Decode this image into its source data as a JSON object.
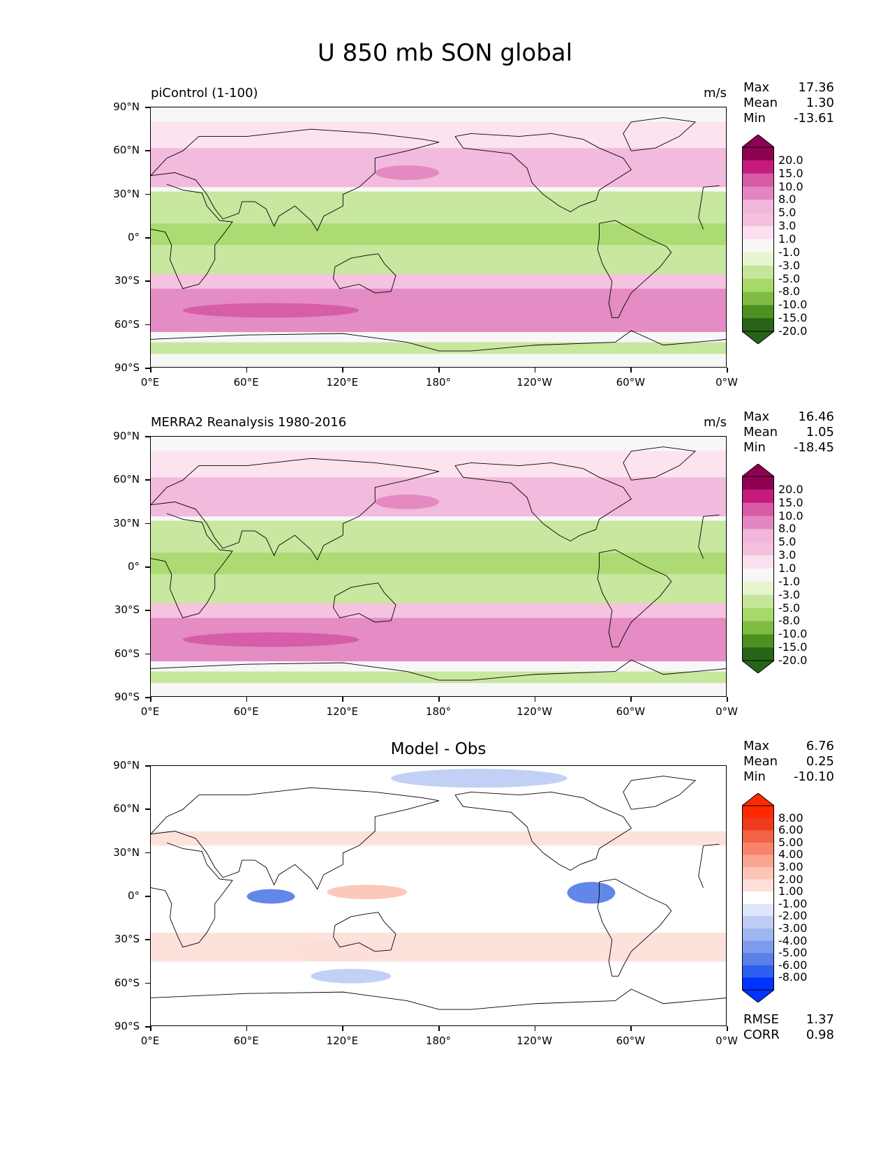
{
  "title": "U 850 mb SON global",
  "colors": {
    "seq": [
      "#276419",
      "#4d9221",
      "#7fbc41",
      "#a6d96a",
      "#c5e69a",
      "#e6f5d0",
      "#f7f7f7",
      "#fde0ef",
      "#f4bfdd",
      "#f1b6da",
      "#e386c0",
      "#d55ba5",
      "#c51b7d",
      "#8e0152"
    ],
    "diff": [
      "#0033ff",
      "#2f5ff0",
      "#5b80e8",
      "#7d9bec",
      "#9fb5f0",
      "#bfcdf5",
      "#dee6fb",
      "#ffffff",
      "#fde0da",
      "#fcc5b7",
      "#f9a48f",
      "#f6836a",
      "#f26244",
      "#ef3a1e",
      "#ff2a00"
    ]
  },
  "axes": {
    "lat_labels": [
      "90°N",
      "60°N",
      "30°N",
      "0°",
      "30°S",
      "60°S",
      "90°S"
    ],
    "lon_labels": [
      "0°E",
      "60°E",
      "120°E",
      "180°",
      "120°W",
      "60°W",
      "0°W"
    ]
  },
  "panels": [
    {
      "title": "piControl (1-100)",
      "units": "m/s",
      "stats": {
        "max_label": "Max",
        "max": "17.36",
        "mean_label": "Mean",
        "mean": "1.30",
        "min_label": "Min",
        "min": "-13.61"
      },
      "colorbar_labels": [
        "20.0",
        "15.0",
        "10.0",
        "8.0",
        "5.0",
        "3.0",
        "1.0",
        "-1.0",
        "-3.0",
        "-5.0",
        "-8.0",
        "-10.0",
        "-15.0",
        "-20.0"
      ]
    },
    {
      "title": "MERRA2 Reanalysis 1980-2016",
      "units": "m/s",
      "stats": {
        "max_label": "Max",
        "max": "16.46",
        "mean_label": "Mean",
        "mean": "1.05",
        "min_label": "Min",
        "min": "-18.45"
      },
      "colorbar_labels": [
        "20.0",
        "15.0",
        "10.0",
        "8.0",
        "5.0",
        "3.0",
        "1.0",
        "-1.0",
        "-3.0",
        "-5.0",
        "-8.0",
        "-10.0",
        "-15.0",
        "-20.0"
      ]
    },
    {
      "title": "Model - Obs",
      "stats": {
        "max_label": "Max",
        "max": "6.76",
        "mean_label": "Mean",
        "mean": "0.25",
        "min_label": "Min",
        "min": "-10.10"
      },
      "colorbar_labels": [
        "8.00",
        "6.00",
        "5.00",
        "4.00",
        "3.00",
        "2.00",
        "1.00",
        "-1.00",
        "-2.00",
        "-3.00",
        "-4.00",
        "-5.00",
        "-6.00",
        "-8.00"
      ],
      "rmse_label": "RMSE",
      "rmse": "1.37",
      "corr_label": "CORR",
      "corr": "0.98"
    }
  ],
  "chart_data": [
    {
      "type": "heatmap",
      "title": "piControl (1-100)",
      "units": "m/s",
      "x_range": [
        0,
        360
      ],
      "y_range": [
        -90,
        90
      ],
      "zonal_bands": [
        {
          "lat": [
            62,
            80
          ],
          "level": "3.0"
        },
        {
          "lat": [
            35,
            62
          ],
          "level": "8.0"
        },
        {
          "lat": [
            40,
            50
          ],
          "lon": [
            140,
            180
          ],
          "level": "10.0"
        },
        {
          "lat": [
            10,
            32
          ],
          "level": "-3.0"
        },
        {
          "lat": [
            -5,
            10
          ],
          "level": "-5.0"
        },
        {
          "lat": [
            -25,
            -5
          ],
          "level": "-3.0"
        },
        {
          "lat": [
            -35,
            -25
          ],
          "level": "5.0"
        },
        {
          "lat": [
            -65,
            -35
          ],
          "level": "10.0"
        },
        {
          "lat": [
            -55,
            -45
          ],
          "lon": [
            20,
            130
          ],
          "level": "15.0"
        },
        {
          "lat": [
            -72,
            -65
          ],
          "level": "1.0"
        },
        {
          "lat": [
            -80,
            -72
          ],
          "level": "-3.0"
        }
      ]
    },
    {
      "type": "heatmap",
      "title": "MERRA2 Reanalysis 1980-2016",
      "units": "m/s",
      "x_range": [
        0,
        360
      ],
      "y_range": [
        -90,
        90
      ],
      "zonal_bands": [
        {
          "lat": [
            62,
            80
          ],
          "level": "3.0"
        },
        {
          "lat": [
            35,
            62
          ],
          "level": "8.0"
        },
        {
          "lat": [
            40,
            50
          ],
          "lon": [
            140,
            180
          ],
          "level": "10.0"
        },
        {
          "lat": [
            10,
            32
          ],
          "level": "-3.0"
        },
        {
          "lat": [
            -5,
            10
          ],
          "level": "-5.0"
        },
        {
          "lat": [
            -25,
            -5
          ],
          "level": "-3.0"
        },
        {
          "lat": [
            -35,
            -25
          ],
          "level": "5.0"
        },
        {
          "lat": [
            -65,
            -35
          ],
          "level": "10.0"
        },
        {
          "lat": [
            -55,
            -45
          ],
          "lon": [
            20,
            130
          ],
          "level": "15.0"
        },
        {
          "lat": [
            -72,
            -65
          ],
          "level": "1.0"
        },
        {
          "lat": [
            -80,
            -72
          ],
          "level": "-3.0"
        }
      ]
    },
    {
      "type": "heatmap",
      "title": "Model - Obs",
      "x_range": [
        0,
        360
      ],
      "y_range": [
        -90,
        90
      ],
      "zonal_bands": [
        {
          "lat": [
            75,
            88
          ],
          "lon": [
            150,
            260
          ],
          "level": "-2.00"
        },
        {
          "lat": [
            35,
            45
          ],
          "level": "2.00"
        },
        {
          "lat": [
            -5,
            5
          ],
          "lon": [
            60,
            90
          ],
          "level": "-5.00"
        },
        {
          "lat": [
            -5,
            10
          ],
          "lon": [
            260,
            290
          ],
          "level": "-5.00"
        },
        {
          "lat": [
            -2,
            8
          ],
          "lon": [
            110,
            160
          ],
          "level": "3.00"
        },
        {
          "lat": [
            -45,
            -30
          ],
          "lon": [
            80,
            150
          ],
          "level": "3.00"
        },
        {
          "lat": [
            -45,
            -25
          ],
          "level": "2.00"
        },
        {
          "lat": [
            -60,
            -50
          ],
          "lon": [
            100,
            150
          ],
          "level": "-2.00"
        }
      ]
    }
  ]
}
